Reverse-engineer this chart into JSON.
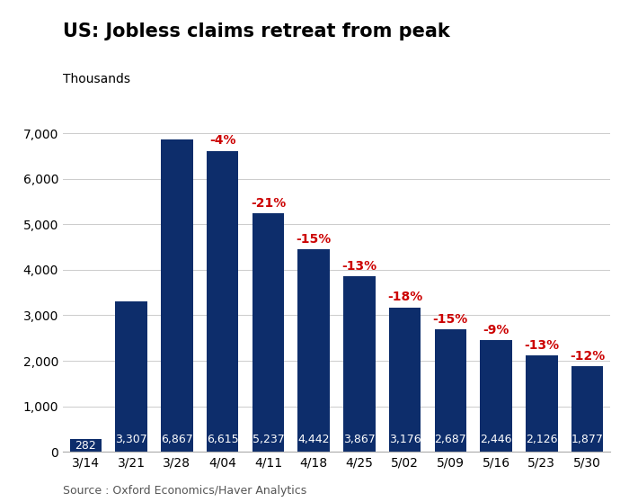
{
  "categories": [
    "3/14",
    "3/21",
    "3/28",
    "4/04",
    "4/11",
    "4/18",
    "4/25",
    "5/02",
    "5/09",
    "5/16",
    "5/23",
    "5/30"
  ],
  "values": [
    282,
    3307,
    6867,
    6615,
    5237,
    4442,
    3867,
    3176,
    2687,
    2446,
    2126,
    1877
  ],
  "pct_changes": [
    null,
    null,
    null,
    "-4%",
    "-21%",
    "-15%",
    "-13%",
    "-18%",
    "-15%",
    "-9%",
    "-13%",
    "-12%"
  ],
  "bar_color": "#0d2d6b",
  "pct_color": "#cc0000",
  "title": "US: Jobless claims retreat from peak",
  "ylabel": "Thousands",
  "source": "Source : Oxford Economics/Haver Analytics",
  "ylim": [
    0,
    7500
  ],
  "yticks": [
    0,
    1000,
    2000,
    3000,
    4000,
    5000,
    6000,
    7000
  ],
  "ytick_labels": [
    "0",
    "1,000",
    "2,000",
    "3,000",
    "4,000",
    "5,000",
    "6,000",
    "7,000"
  ],
  "title_fontsize": 15,
  "label_fontsize": 10,
  "source_fontsize": 9,
  "ylabel_fontsize": 10,
  "pct_fontsize": 10,
  "bar_label_fontsize": 9
}
